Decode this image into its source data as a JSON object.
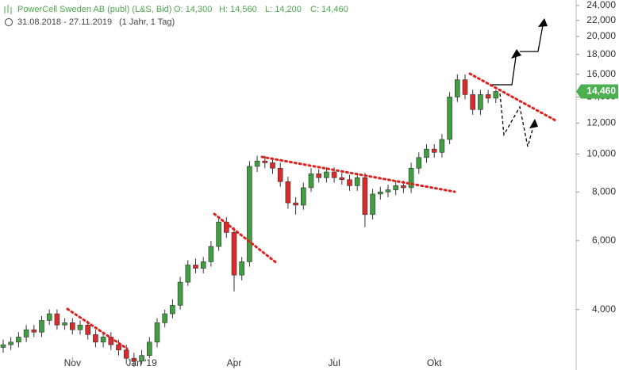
{
  "chart_data": {
    "type": "candlestick",
    "title": "PowerCell Sweden AB (publ) (L&S, Bid)",
    "subtitle": "31.08.2018 - 27.11.2019",
    "header": {
      "open": "O: 14,300",
      "high": "H: 14,560",
      "low": "L: 14,200",
      "close": "C: 14,460",
      "period": "(1 Jahr, 1 Tag)"
    },
    "last_price": {
      "value": 14460,
      "label": "14,460"
    },
    "log_scale": true,
    "up_color": "#3f9e3f",
    "down_color": "#d92b2b",
    "categories": [
      null,
      null,
      null,
      null,
      null,
      null,
      null,
      null,
      null,
      "Nov",
      null,
      null,
      null,
      null,
      null,
      null,
      null,
      null,
      "Jan '19",
      null,
      null,
      null,
      null,
      null,
      null,
      null,
      null,
      null,
      null,
      null,
      "Apr",
      null,
      null,
      null,
      null,
      null,
      null,
      null,
      null,
      null,
      null,
      null,
      null,
      "Jul",
      null,
      null,
      null,
      null,
      null,
      null,
      null,
      null,
      null,
      null,
      null,
      null,
      "Okt",
      null,
      null,
      null,
      null,
      null,
      null,
      null,
      null
    ],
    "open": [
      3200,
      3250,
      3300,
      3400,
      3550,
      3500,
      3750,
      3900,
      3650,
      3700,
      3550,
      3650,
      3450,
      3300,
      3400,
      3250,
      3150,
      3000,
      2950,
      3050,
      3300,
      3700,
      3900,
      4100,
      4700,
      5200,
      5100,
      5300,
      5800,
      6700,
      6300,
      4900,
      5300,
      9300,
      9600,
      9500,
      9200,
      8500,
      7500,
      7400,
      8200,
      8900,
      8700,
      9000,
      8700,
      8600,
      8300,
      8700,
      7000,
      7900,
      8000,
      8100,
      8300,
      8200,
      9200,
      9800,
      10300,
      10100,
      10900,
      14000,
      15500,
      14200,
      13000,
      14200,
      13900
    ],
    "high": [
      3350,
      3400,
      3500,
      3650,
      3650,
      3850,
      4000,
      4000,
      3800,
      3800,
      3750,
      3750,
      3550,
      3500,
      3500,
      3350,
      3250,
      3100,
      3150,
      3400,
      3800,
      4000,
      4250,
      4850,
      5350,
      5400,
      5450,
      6000,
      6900,
      6900,
      6500,
      5450,
      9600,
      9900,
      9900,
      9800,
      9500,
      8750,
      7750,
      8450,
      9200,
      9150,
      9250,
      9250,
      8950,
      8850,
      8950,
      8950,
      8150,
      8250,
      8350,
      8550,
      8550,
      9500,
      10100,
      10600,
      10600,
      11250,
      14400,
      16000,
      16000,
      14600,
      14600,
      14600,
      14600
    ],
    "low": [
      3100,
      3150,
      3200,
      3300,
      3400,
      3400,
      3650,
      3550,
      3550,
      3450,
      3450,
      3350,
      3200,
      3200,
      3150,
      3050,
      2900,
      2850,
      2900,
      3000,
      3200,
      3600,
      3800,
      4000,
      4600,
      4950,
      4950,
      5150,
      5650,
      6100,
      4450,
      4750,
      5150,
      9000,
      9200,
      8900,
      8250,
      7250,
      7000,
      7200,
      8000,
      8450,
      8450,
      8450,
      8350,
      8050,
      8050,
      6500,
      6800,
      7650,
      7750,
      7850,
      7950,
      7950,
      8900,
      9500,
      9800,
      9800,
      10600,
      13600,
      13800,
      12600,
      12600,
      13500,
      13500
    ],
    "close": [
      3250,
      3300,
      3400,
      3550,
      3500,
      3750,
      3900,
      3650,
      3700,
      3550,
      3650,
      3450,
      3300,
      3400,
      3250,
      3150,
      3000,
      2950,
      3050,
      3300,
      3700,
      3900,
      4100,
      4700,
      5200,
      5100,
      5300,
      5800,
      6700,
      6300,
      4900,
      5300,
      9300,
      9600,
      9500,
      9200,
      8500,
      7500,
      7400,
      8200,
      8900,
      8700,
      9000,
      8700,
      8600,
      8300,
      8700,
      7000,
      7900,
      8000,
      8100,
      8300,
      8200,
      9200,
      9800,
      10300,
      10100,
      10900,
      14000,
      15500,
      14200,
      13000,
      14200,
      13900,
      14460
    ],
    "ylim": [
      2800,
      24800
    ],
    "yticks": [
      {
        "value": 4000,
        "label": "4,000"
      },
      {
        "value": 6000,
        "label": "6,000"
      },
      {
        "value": 8000,
        "label": "8,000"
      },
      {
        "value": 10000,
        "label": "10,000"
      },
      {
        "value": 12000,
        "label": "12,000"
      },
      {
        "value": 14000,
        "label": "14,000"
      },
      {
        "value": 16000,
        "label": "16,000"
      },
      {
        "value": 18000,
        "label": "18,000"
      },
      {
        "value": 20000,
        "label": "20,000"
      },
      {
        "value": 22000,
        "label": "22,000"
      },
      {
        "value": 24000,
        "label": "24,000"
      }
    ]
  }
}
